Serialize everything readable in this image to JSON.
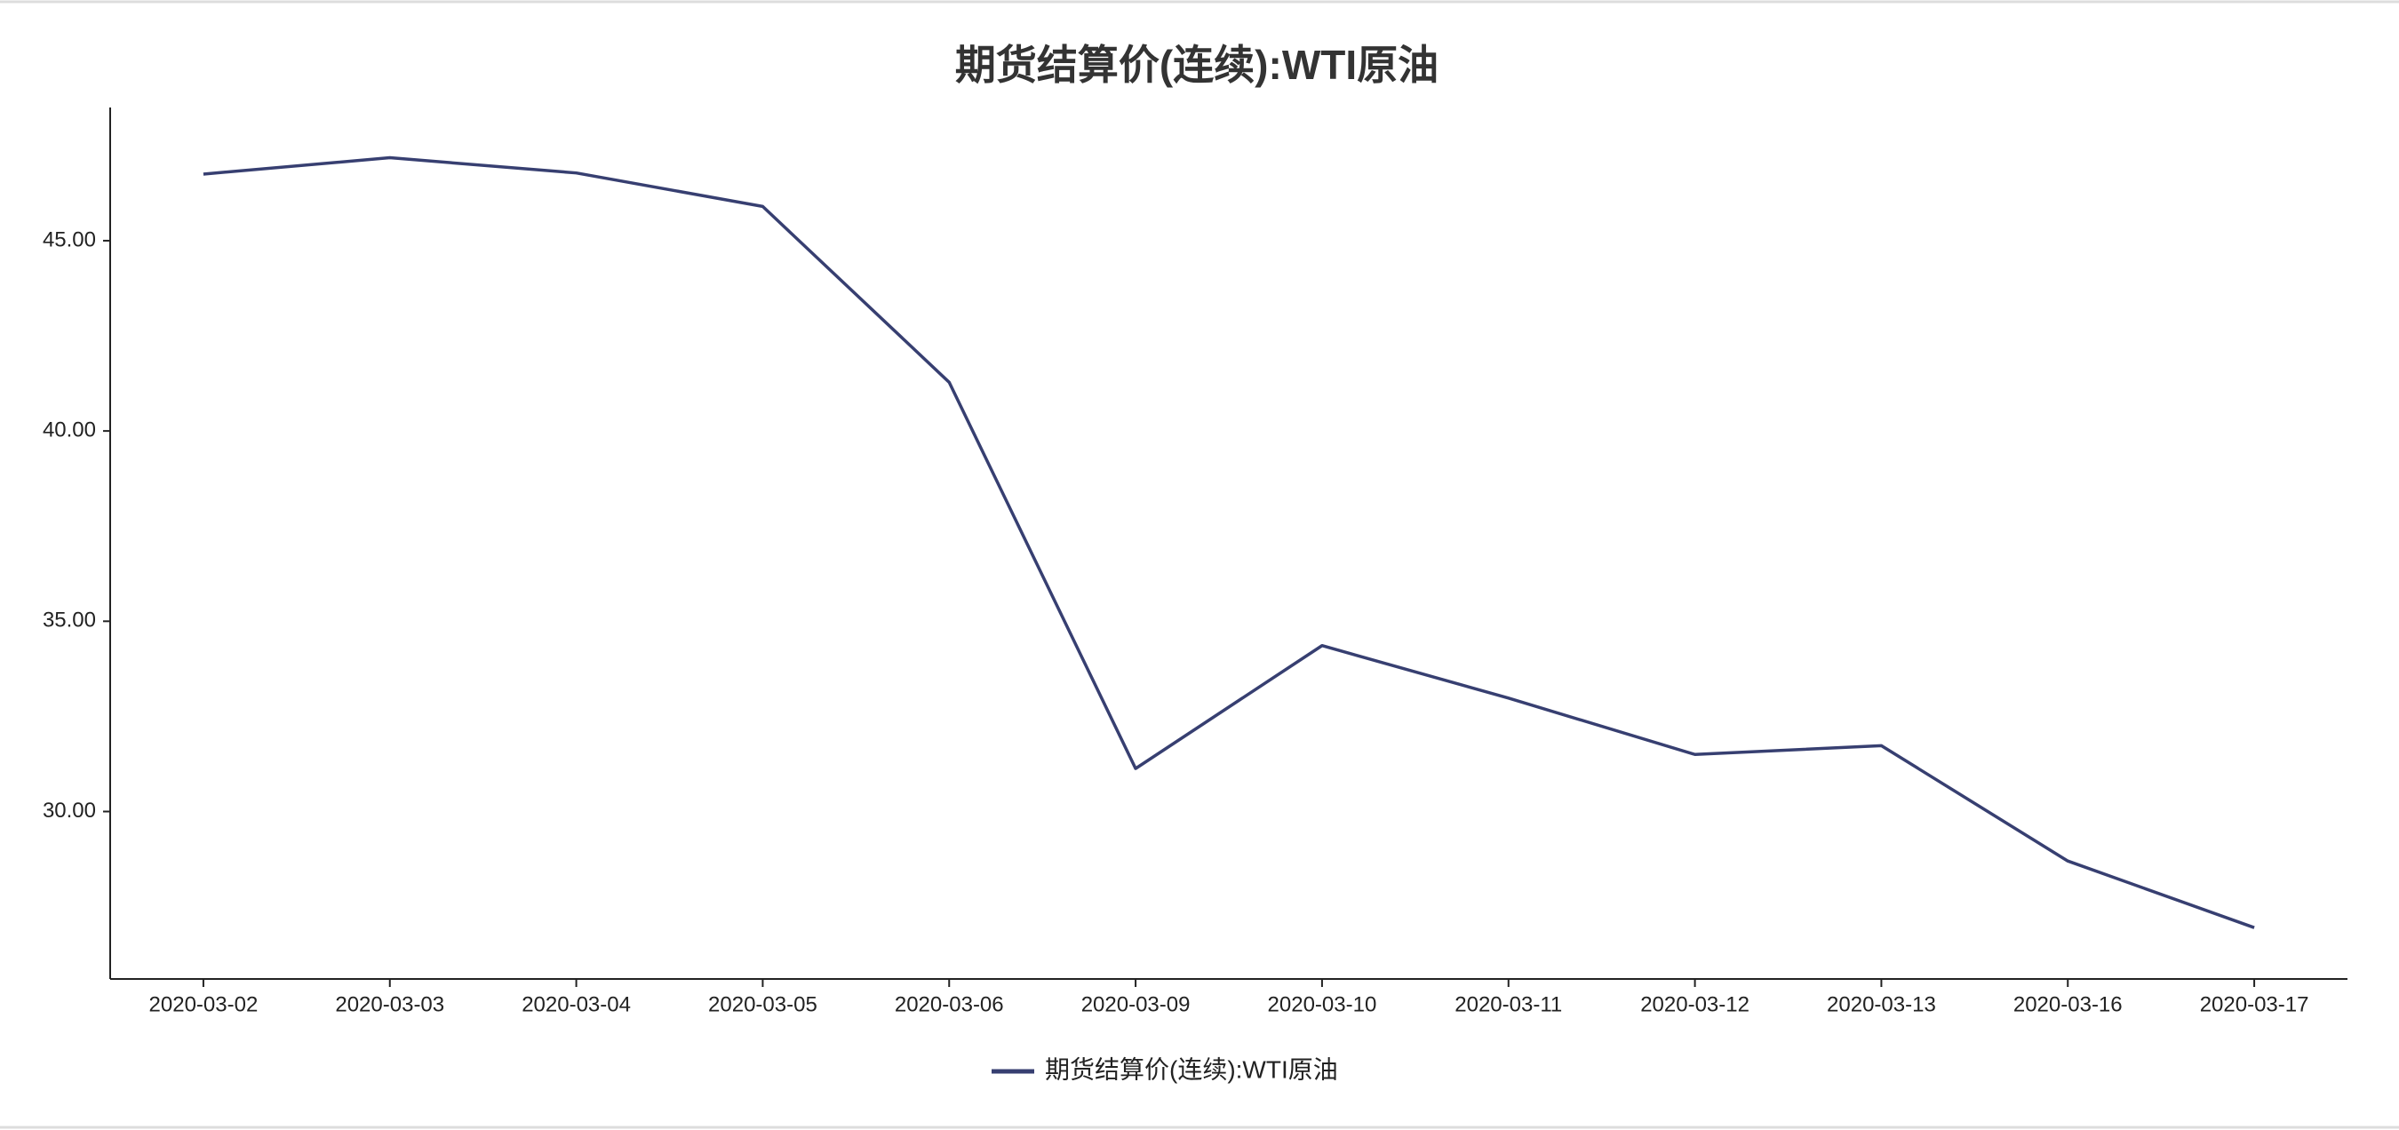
{
  "chart_data": {
    "type": "line",
    "title": "期货结算价(连续):WTI原油",
    "categories": [
      "2020-03-02",
      "2020-03-03",
      "2020-03-04",
      "2020-03-05",
      "2020-03-06",
      "2020-03-09",
      "2020-03-10",
      "2020-03-11",
      "2020-03-12",
      "2020-03-13",
      "2020-03-16",
      "2020-03-17"
    ],
    "series": [
      {
        "name": "期货结算价(连续):WTI原油",
        "color": "#373f71",
        "values": [
          46.75,
          47.18,
          46.78,
          45.9,
          41.28,
          31.13,
          34.36,
          32.98,
          31.5,
          31.73,
          28.7,
          26.95
        ]
      }
    ],
    "ylim": [
      25.6,
      48.5
    ],
    "yticks": [
      {
        "value": 30,
        "label": "30.00"
      },
      {
        "value": 35,
        "label": "35.00"
      },
      {
        "value": 40,
        "label": "40.00"
      },
      {
        "value": 45,
        "label": "45.00"
      }
    ],
    "legend": "bottom"
  }
}
